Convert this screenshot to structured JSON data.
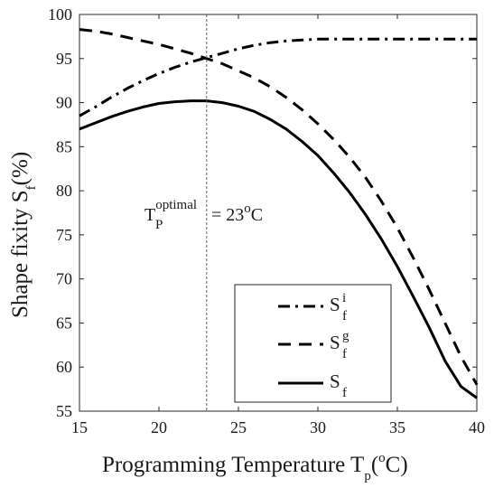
{
  "chart_data": {
    "type": "line",
    "xlabel": {
      "main": "Programming Temperature T",
      "sub": "p",
      "paren_open": "(",
      "sup": "o",
      "unit": "C",
      "paren_close": ")"
    },
    "ylabel": {
      "main": "Shape fixity S",
      "sub": "f",
      "unit": "(%)"
    },
    "xlim": [
      15,
      40
    ],
    "ylim": [
      55,
      100
    ],
    "xticks": [
      15,
      20,
      25,
      30,
      35,
      40
    ],
    "yticks": [
      55,
      60,
      65,
      70,
      75,
      80,
      85,
      90,
      95,
      100
    ],
    "grid": false,
    "legend_position": "bottom-right",
    "series": [
      {
        "name": {
          "main": "S",
          "sub": "f",
          "sup": "i"
        },
        "style": "dash-dot",
        "x": [
          15,
          16,
          17,
          18,
          19,
          20,
          21,
          22,
          23,
          24,
          25,
          26,
          27,
          28,
          29,
          30,
          31,
          32,
          33,
          34,
          35,
          36,
          37,
          38,
          39,
          40
        ],
        "y": [
          88.5,
          89.5,
          90.6,
          91.6,
          92.5,
          93.3,
          94.0,
          94.6,
          95.1,
          95.6,
          96.1,
          96.5,
          96.8,
          97.0,
          97.1,
          97.2,
          97.2,
          97.2,
          97.2,
          97.2,
          97.2,
          97.2,
          97.2,
          97.2,
          97.2,
          97.2
        ]
      },
      {
        "name": {
          "main": "S",
          "sub": "f",
          "sup": "g"
        },
        "style": "dashed",
        "x": [
          15,
          16,
          17,
          18,
          19,
          20,
          21,
          22,
          23,
          24,
          25,
          26,
          27,
          28,
          29,
          30,
          31,
          32,
          33,
          34,
          35,
          36,
          37,
          38,
          39,
          40
        ],
        "y": [
          98.3,
          98.1,
          97.8,
          97.4,
          97.0,
          96.6,
          96.1,
          95.6,
          95.0,
          94.4,
          93.6,
          92.8,
          91.8,
          90.6,
          89.2,
          87.6,
          85.8,
          83.8,
          81.5,
          78.8,
          75.8,
          72.4,
          68.8,
          65.0,
          61.2,
          58.0
        ]
      },
      {
        "name": {
          "main": "S",
          "sub": "f",
          "sup": ""
        },
        "style": "solid",
        "x": [
          15,
          16,
          17,
          18,
          19,
          20,
          21,
          22,
          23,
          24,
          25,
          26,
          27,
          28,
          29,
          30,
          31,
          32,
          33,
          34,
          35,
          36,
          37,
          38,
          39,
          40
        ],
        "y": [
          87.0,
          87.7,
          88.4,
          89.0,
          89.5,
          89.9,
          90.1,
          90.2,
          90.2,
          90.0,
          89.6,
          89.0,
          88.1,
          87.0,
          85.6,
          84.0,
          82.0,
          79.8,
          77.3,
          74.5,
          71.4,
          68.0,
          64.5,
          60.7,
          57.8,
          56.5
        ]
      }
    ],
    "annotation": {
      "x": 23,
      "main": "T",
      "sub": "P",
      "sup": "optimal",
      "rest": " = 23",
      "deg": "o",
      "unit": "C"
    }
  }
}
